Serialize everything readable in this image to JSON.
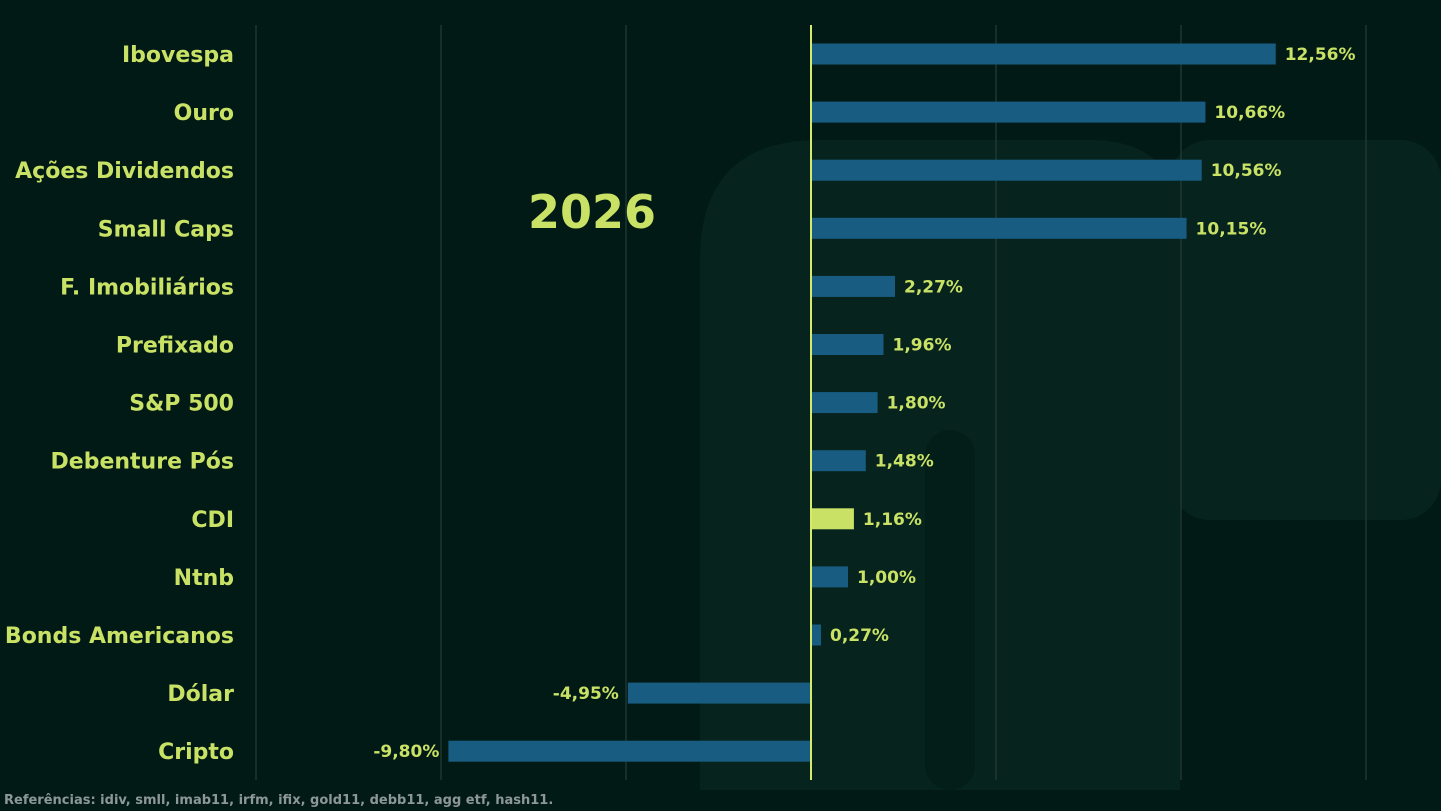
{
  "chart_data": {
    "type": "bar",
    "orientation": "horizontal",
    "annotation": "2026",
    "categories": [
      "Ibovespa",
      "Ouro",
      "Ações Dividendos",
      "Small Caps",
      "F. Imobiliários",
      "Prefixado",
      "S&P 500",
      "Debenture Pós",
      "CDI",
      "Ntnb",
      "Bonds Americanos",
      "Dólar",
      "Cripto"
    ],
    "values": [
      12.56,
      10.66,
      10.56,
      10.15,
      2.27,
      1.96,
      1.8,
      1.48,
      1.16,
      1.0,
      0.27,
      -4.95,
      -9.8
    ],
    "value_labels": [
      "12,56%",
      "10,66%",
      "10,56%",
      "10,15%",
      "2,27%",
      "1,96%",
      "1,80%",
      "1,48%",
      "1,16%",
      "1,00%",
      "0,27%",
      "-4,95%",
      "-9,80%"
    ],
    "highlight": "CDI",
    "xlim": [
      -15,
      15
    ],
    "grid": true,
    "colors": {
      "background": "#021a16",
      "bar": "#185c82",
      "highlight_bar": "#c9e265",
      "text": "#c9e265",
      "zero_line": "#d6ea6e",
      "grid": "#2c423d"
    }
  },
  "footer": {
    "references": "Referências: idiv, smll, imab11, irfm, ifix, gold11, debb11, agg etf, hash11."
  }
}
